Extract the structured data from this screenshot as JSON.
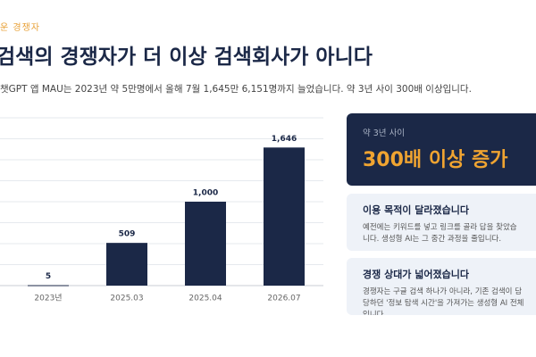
{
  "header": {
    "kicker": "운 경쟁자",
    "title": "검색의 경쟁자가 더 이상 검색회사가 아니다",
    "subtitle": "챗GPT 앱 MAU는 2023년 약 5만명에서 올해 7월 1,645만 6,151명까지 늘었습니다. 약 3년 사이 300배 이상입니다."
  },
  "chart_data": {
    "type": "bar",
    "categories": [
      "2023년",
      "2025.03",
      "2025.04",
      "2026.07"
    ],
    "values": [
      5,
      509,
      1000,
      1646
    ],
    "value_labels": [
      "5",
      "509",
      "1,000",
      "1,646"
    ],
    "color": "#1b2847",
    "ylim": [
      0,
      2000
    ],
    "yticks": [
      0,
      250,
      500,
      750,
      1000,
      1250,
      1500,
      1750,
      2000
    ],
    "grid": true
  },
  "cards": [
    {
      "label": "약 3년 사이",
      "headline": "300배 이상 증가"
    },
    {
      "title": "이용 목적이 달라졌습니다",
      "lines": [
        "예전에는 키워드를 넣고 링크를 골라 답을 찾았습",
        "니다. 생성형 AI는 그 중간 과정을 줄입니다."
      ]
    },
    {
      "title": "경쟁 상대가 넓어졌습니다",
      "lines": [
        "경쟁자는 구글 검색 하나가 아니라, 기존 검색이 담",
        "당하던 '정보 탐색 시간'을 가져가는 생성형 AI 전체",
        "입니다."
      ]
    }
  ]
}
